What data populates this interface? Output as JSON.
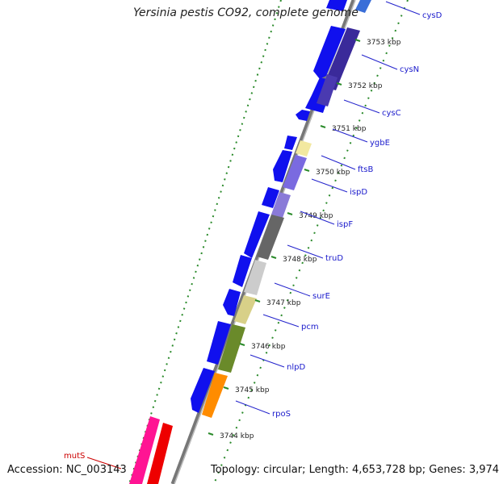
{
  "title": "Yersinia pestis CO92, complete genome",
  "accession_label": "Accession:",
  "accession": "NC_003143",
  "footer_info": "Topology: circular; Length: 4,653,728 bp; Genes: 3,974",
  "scale": {
    "unit": "kbp",
    "ticks": [
      3753,
      3752,
      3751,
      3750,
      3749,
      3748,
      3747,
      3746,
      3745,
      3744
    ]
  },
  "gene_labels": [
    {
      "name": "cysD",
      "color": "#2222cc"
    },
    {
      "name": "cysN",
      "color": "#2222cc"
    },
    {
      "name": "cysC",
      "color": "#2222cc"
    },
    {
      "name": "ygbE",
      "color": "#2222cc"
    },
    {
      "name": "ftsB",
      "color": "#2222cc"
    },
    {
      "name": "ispD",
      "color": "#2222cc"
    },
    {
      "name": "ispF",
      "color": "#2222cc"
    },
    {
      "name": "truD",
      "color": "#2222cc"
    },
    {
      "name": "surE",
      "color": "#2222cc"
    },
    {
      "name": "pcm",
      "color": "#2222cc"
    },
    {
      "name": "nlpD",
      "color": "#2222cc"
    },
    {
      "name": "rpoS",
      "color": "#2222cc"
    },
    {
      "name": "mutS",
      "color": "#cc0000"
    }
  ],
  "colors": {
    "backbone": "#8a8a8a",
    "forward_cds": "#1010ee",
    "dotted_ring": "#2a8a2a",
    "tick_mark": "#2a8a2a"
  }
}
